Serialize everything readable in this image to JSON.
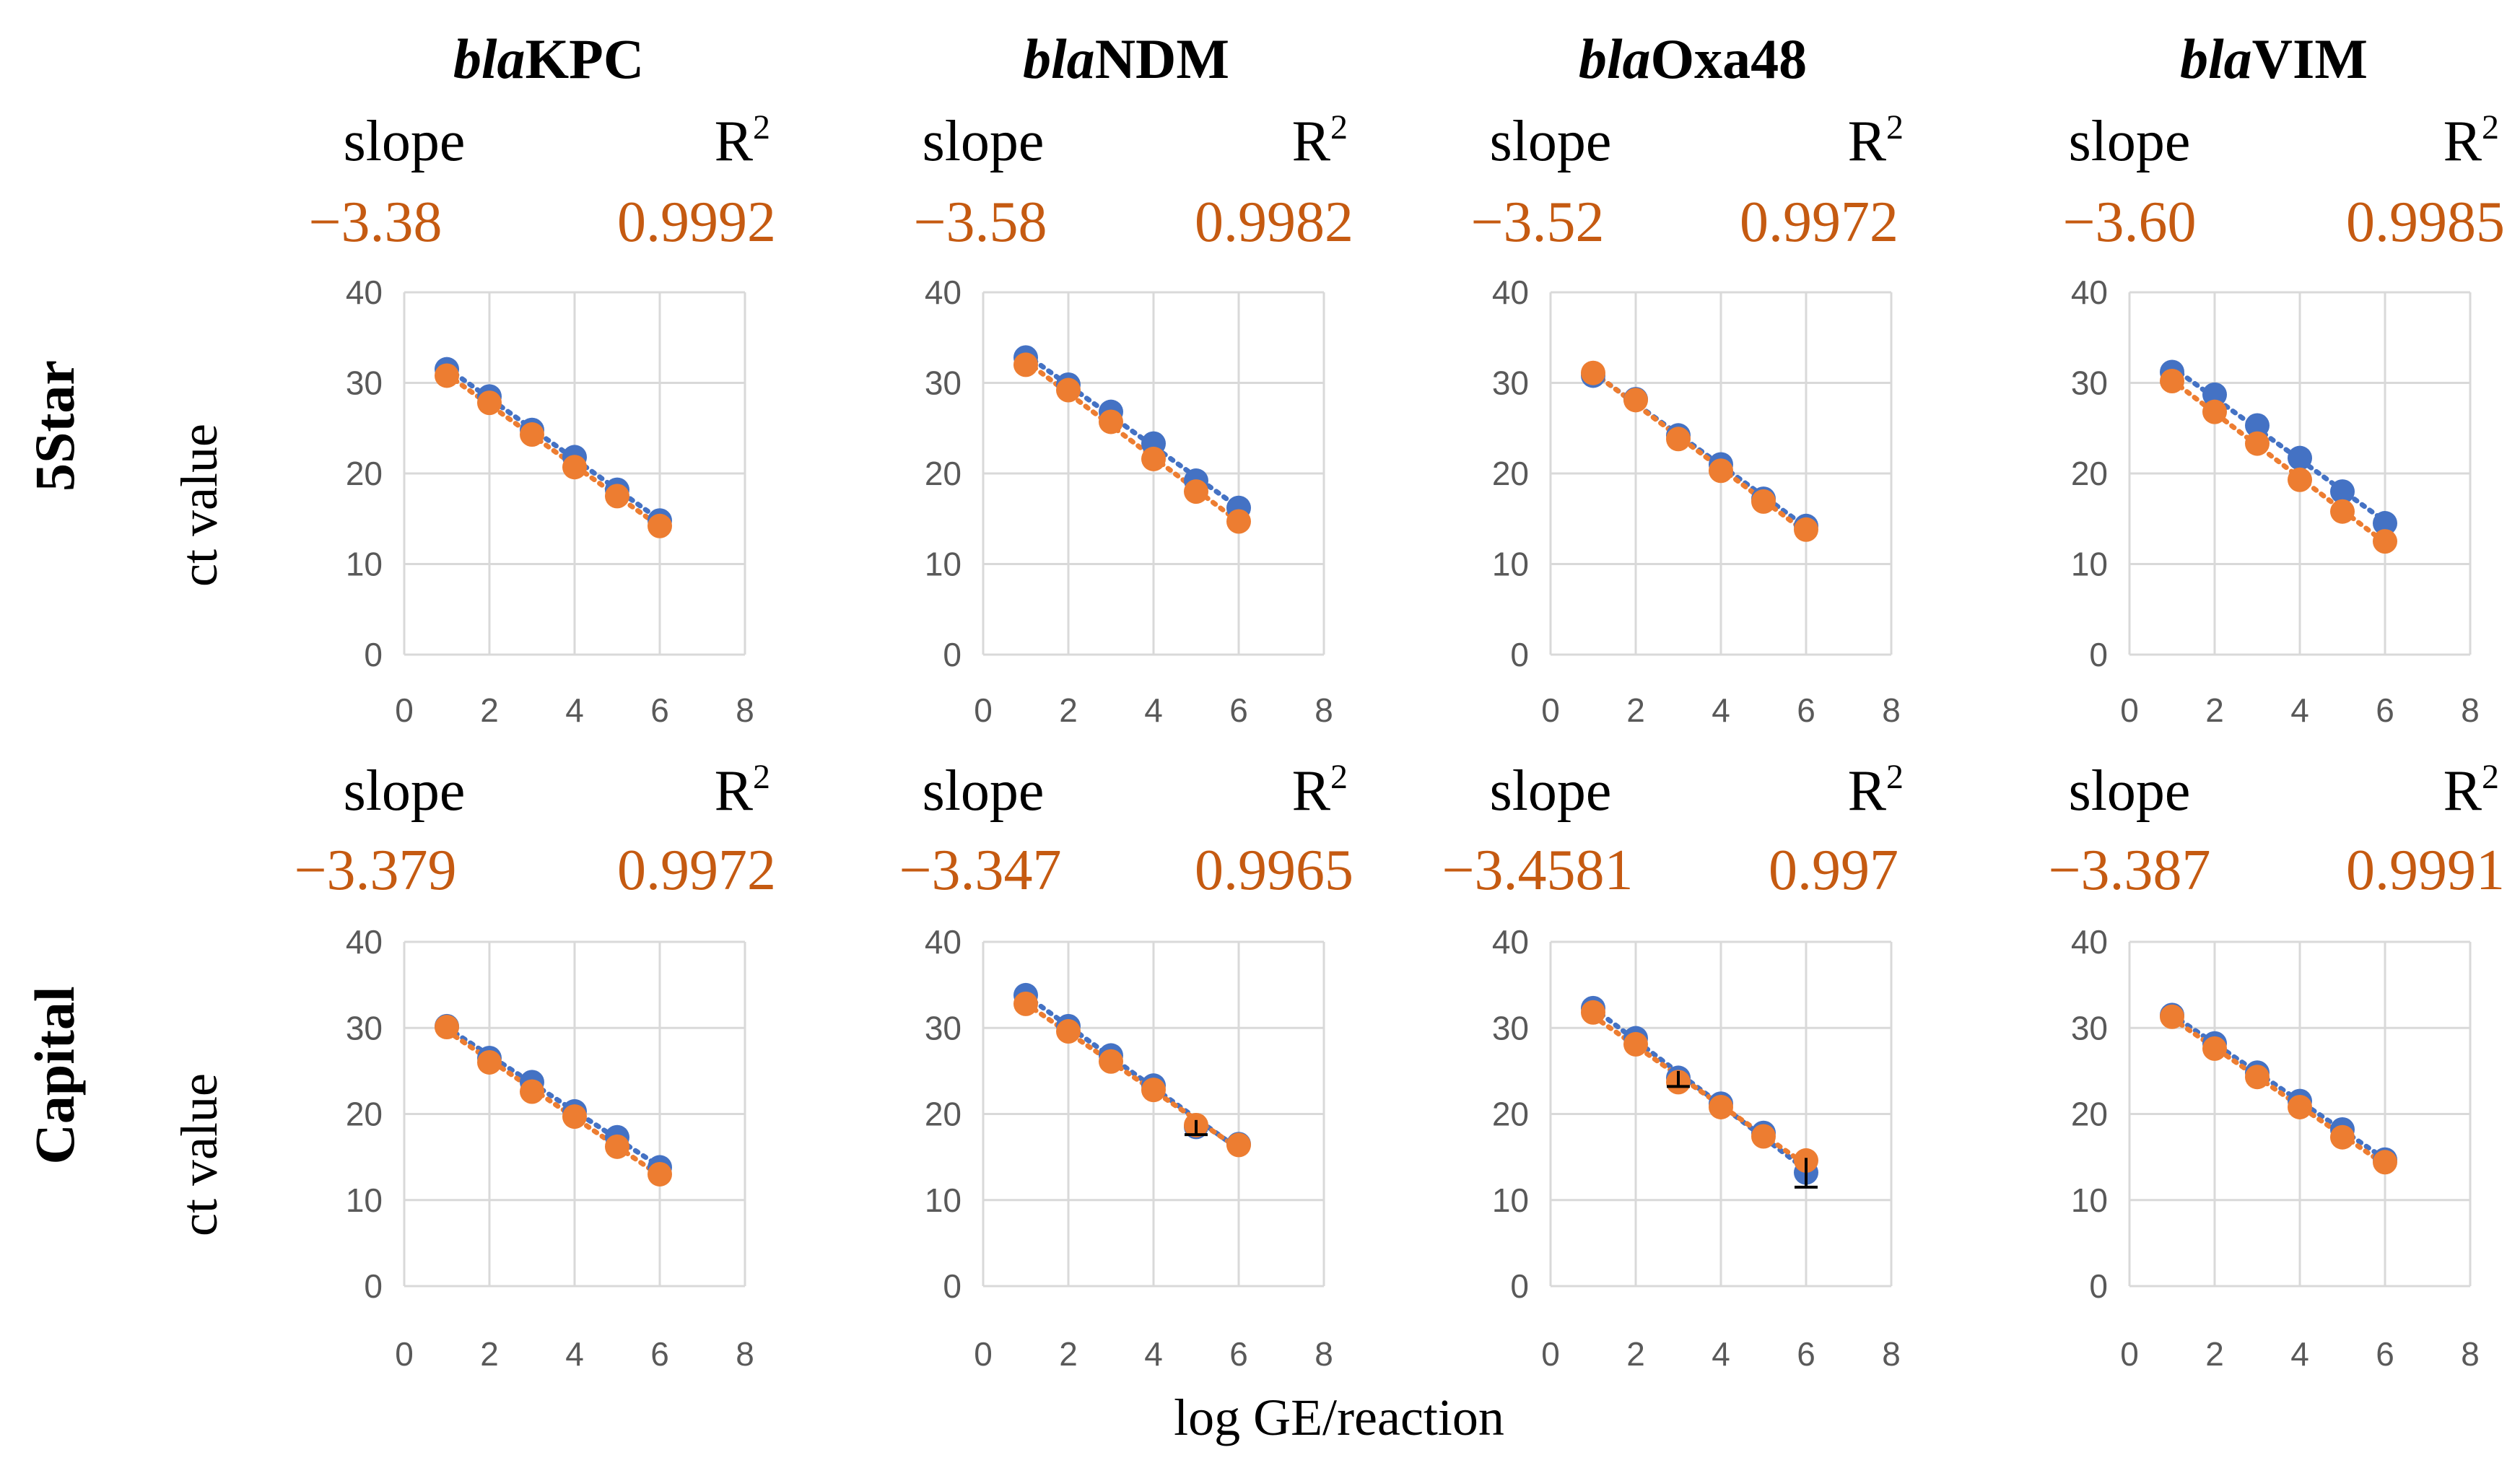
{
  "colors": {
    "series_blue": "#4472C4",
    "series_orange": "#ED7D31",
    "stat_value": "#C55A11",
    "grid": "#D9D9D9",
    "tick_label": "#595959",
    "text": "#000000"
  },
  "figure": {
    "genes": [
      {
        "prefix": "bla",
        "suffix": "KPC"
      },
      {
        "prefix": "bla",
        "suffix": "NDM"
      },
      {
        "prefix": "bla",
        "suffix": "Oxa48"
      },
      {
        "prefix": "bla",
        "suffix": "VIM"
      }
    ],
    "rows": [
      "5Star",
      "Capital"
    ],
    "ylabel": "ct value",
    "xlabel": "log GE/reaction",
    "slope_label": "slope",
    "r2_label": "R",
    "r2_sup": "2"
  },
  "chart_data": [
    {
      "type": "scatter",
      "row": "5Star",
      "gene": "blaKPC",
      "slope": "−3.38",
      "r2": "0.9992",
      "xlim": [
        0,
        8
      ],
      "ylim": [
        0,
        40
      ],
      "xticks": [
        "0",
        "2",
        "4",
        "6",
        "8"
      ],
      "yticks": [
        "0",
        "10",
        "20",
        "30",
        "40"
      ],
      "series": [
        {
          "name": "blue",
          "x": [
            1,
            2,
            3,
            4,
            5,
            6
          ],
          "y": [
            31.5,
            28.5,
            24.8,
            21.8,
            18.2,
            14.8
          ]
        },
        {
          "name": "orange",
          "x": [
            1,
            2,
            3,
            4,
            5,
            6
          ],
          "y": [
            30.8,
            27.8,
            24.3,
            20.7,
            17.5,
            14.2
          ]
        }
      ],
      "error_bars": []
    },
    {
      "type": "scatter",
      "row": "5Star",
      "gene": "blaNDM",
      "slope": "−3.58",
      "r2": "0.9982",
      "xlim": [
        0,
        8
      ],
      "ylim": [
        0,
        40
      ],
      "xticks": [
        "0",
        "2",
        "4",
        "6",
        "8"
      ],
      "yticks": [
        "0",
        "10",
        "20",
        "30",
        "40"
      ],
      "series": [
        {
          "name": "blue",
          "x": [
            1,
            2,
            3,
            4,
            5,
            6
          ],
          "y": [
            32.8,
            29.8,
            26.8,
            23.3,
            19.2,
            16.2
          ]
        },
        {
          "name": "orange",
          "x": [
            1,
            2,
            3,
            4,
            5,
            6
          ],
          "y": [
            32.0,
            29.2,
            25.7,
            21.6,
            18.0,
            14.7
          ]
        }
      ],
      "error_bars": []
    },
    {
      "type": "scatter",
      "row": "5Star",
      "gene": "blaOxa48",
      "slope": "−3.52",
      "r2": "0.9972",
      "xlim": [
        0,
        8
      ],
      "ylim": [
        0,
        40
      ],
      "xticks": [
        "0",
        "2",
        "4",
        "6",
        "8"
      ],
      "yticks": [
        "0",
        "10",
        "20",
        "30",
        "40"
      ],
      "series": [
        {
          "name": "blue",
          "x": [
            1,
            2,
            3,
            4,
            5,
            6
          ],
          "y": [
            30.8,
            28.2,
            24.2,
            21.0,
            17.2,
            14.2
          ]
        },
        {
          "name": "orange",
          "x": [
            1,
            2,
            3,
            4,
            5,
            6
          ],
          "y": [
            31.1,
            28.1,
            23.8,
            20.3,
            16.9,
            13.8
          ]
        }
      ],
      "error_bars": []
    },
    {
      "type": "scatter",
      "row": "5Star",
      "gene": "blaVIM",
      "slope": "−3.60",
      "r2": "0.9985",
      "xlim": [
        0,
        8
      ],
      "ylim": [
        0,
        40
      ],
      "xticks": [
        "0",
        "2",
        "4",
        "6",
        "8"
      ],
      "yticks": [
        "0",
        "10",
        "20",
        "30",
        "40"
      ],
      "series": [
        {
          "name": "blue",
          "x": [
            1,
            2,
            3,
            4,
            5,
            6
          ],
          "y": [
            31.2,
            28.7,
            25.3,
            21.7,
            18.0,
            14.5
          ]
        },
        {
          "name": "orange",
          "x": [
            1,
            2,
            3,
            4,
            5,
            6
          ],
          "y": [
            30.2,
            26.8,
            23.3,
            19.3,
            15.8,
            12.5
          ]
        }
      ],
      "error_bars": []
    },
    {
      "type": "scatter",
      "row": "Capital",
      "gene": "blaKPC",
      "slope": "−3.379",
      "r2": "0.9972",
      "xlim": [
        0,
        8
      ],
      "ylim": [
        0,
        40
      ],
      "xticks": [
        "0",
        "2",
        "4",
        "6",
        "8"
      ],
      "yticks": [
        "0",
        "10",
        "20",
        "30",
        "40"
      ],
      "series": [
        {
          "name": "blue",
          "x": [
            1,
            2,
            3,
            4,
            5,
            6
          ],
          "y": [
            30.2,
            26.5,
            23.7,
            20.3,
            17.3,
            13.8
          ]
        },
        {
          "name": "orange",
          "x": [
            1,
            2,
            3,
            4,
            5,
            6
          ],
          "y": [
            30.1,
            26.0,
            22.6,
            19.7,
            16.2,
            13.0
          ]
        }
      ],
      "error_bars": []
    },
    {
      "type": "scatter",
      "row": "Capital",
      "gene": "blaNDM",
      "slope": "−3.347",
      "r2": "0.9965",
      "xlim": [
        0,
        8
      ],
      "ylim": [
        0,
        40
      ],
      "xticks": [
        "0",
        "2",
        "4",
        "6",
        "8"
      ],
      "yticks": [
        "0",
        "10",
        "20",
        "30",
        "40"
      ],
      "series": [
        {
          "name": "blue",
          "x": [
            1,
            2,
            3,
            4,
            5,
            6
          ],
          "y": [
            33.8,
            30.2,
            26.8,
            23.3,
            18.5,
            16.5
          ]
        },
        {
          "name": "orange",
          "x": [
            1,
            2,
            3,
            4,
            5,
            6
          ],
          "y": [
            32.8,
            29.6,
            26.1,
            22.8,
            18.7,
            16.4
          ]
        }
      ],
      "error_bars": [
        {
          "x": 5,
          "low": 17.6,
          "high": 19.3
        }
      ]
    },
    {
      "type": "scatter",
      "row": "Capital",
      "gene": "blaOxa48",
      "slope": "−3.4581",
      "r2": "0.997",
      "xlim": [
        0,
        8
      ],
      "ylim": [
        0,
        40
      ],
      "xticks": [
        "0",
        "2",
        "4",
        "6",
        "8"
      ],
      "yticks": [
        "0",
        "10",
        "20",
        "30",
        "40"
      ],
      "series": [
        {
          "name": "blue",
          "x": [
            1,
            2,
            3,
            4,
            5,
            6
          ],
          "y": [
            32.3,
            28.8,
            24.2,
            21.2,
            17.8,
            13.2
          ]
        },
        {
          "name": "orange",
          "x": [
            1,
            2,
            3,
            4,
            5,
            6
          ],
          "y": [
            31.8,
            28.1,
            23.7,
            20.8,
            17.4,
            14.6
          ]
        }
      ],
      "error_bars": [
        {
          "x": 6,
          "low": 11.5,
          "high": 14.9
        },
        {
          "x": 3,
          "low": 23.2,
          "high": 25.0
        }
      ]
    },
    {
      "type": "scatter",
      "row": "Capital",
      "gene": "blaVIM",
      "slope": "−3.387",
      "r2": "0.9991",
      "xlim": [
        0,
        8
      ],
      "ylim": [
        0,
        40
      ],
      "xticks": [
        "0",
        "2",
        "4",
        "6",
        "8"
      ],
      "yticks": [
        "0",
        "10",
        "20",
        "30",
        "40"
      ],
      "series": [
        {
          "name": "blue",
          "x": [
            1,
            2,
            3,
            4,
            5,
            6
          ],
          "y": [
            31.5,
            28.2,
            24.8,
            21.5,
            18.2,
            14.7
          ]
        },
        {
          "name": "orange",
          "x": [
            1,
            2,
            3,
            4,
            5,
            6
          ],
          "y": [
            31.3,
            27.6,
            24.3,
            20.8,
            17.3,
            14.4
          ]
        }
      ],
      "error_bars": []
    }
  ]
}
